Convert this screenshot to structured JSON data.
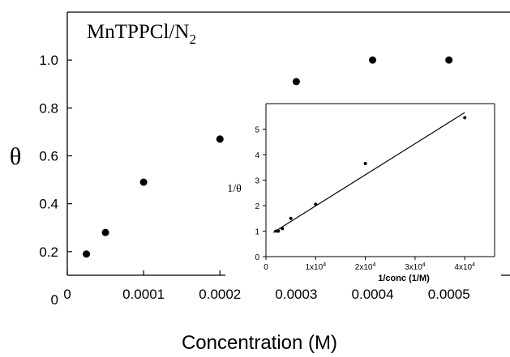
{
  "chart_data": [
    {
      "type": "scatter",
      "title": "MnTPPCl/N",
      "title_subscript": "2",
      "xlabel": "Concentration (M)",
      "ylabel": "θ",
      "xlim": [
        0,
        0.00058
      ],
      "ylim": [
        0,
        1.2
      ],
      "x_ticks": [
        0,
        0.0001,
        0.0002,
        0.0003,
        0.0004,
        0.0005
      ],
      "x_tick_labels": [
        "0",
        "0.0001",
        "0.0002",
        "0.0003",
        "0.0004",
        "0.0005"
      ],
      "y_ticks": [
        0,
        0.2,
        0.4,
        0.6,
        0.8,
        1.0
      ],
      "y_tick_labels": [
        "0",
        "0.2",
        "0.4",
        "0.6",
        "0.8",
        "1.0"
      ],
      "grid": false,
      "x": [
        2.5e-05,
        5e-05,
        0.0001,
        0.0002,
        0.0003,
        0.0004,
        0.0005
      ],
      "y": [
        0.19,
        0.28,
        0.49,
        0.67,
        0.91,
        1.0,
        1.0
      ],
      "marker_color": "#000000"
    },
    {
      "type": "scatter",
      "role": "inset",
      "xlabel": "1/conc (1/M)",
      "ylabel": "1/θ",
      "xlim": [
        0,
        46000
      ],
      "ylim": [
        0,
        6
      ],
      "x_ticks": [
        0,
        10000,
        20000,
        30000,
        40000
      ],
      "x_tick_labels": [
        {
          "base": "0",
          "exp": ""
        },
        {
          "base": "1x10",
          "exp": "4"
        },
        {
          "base": "2x10",
          "exp": "4"
        },
        {
          "base": "3x10",
          "exp": "4"
        },
        {
          "base": "4x10",
          "exp": "4"
        }
      ],
      "y_ticks": [
        0,
        1,
        2,
        3,
        4,
        5
      ],
      "y_tick_labels": [
        "0",
        "1",
        "2",
        "3",
        "4",
        "5"
      ],
      "grid": false,
      "x": [
        2000,
        2500,
        3300,
        5000,
        10000,
        20000,
        40000
      ],
      "y": [
        1.0,
        1.0,
        1.1,
        1.5,
        2.05,
        3.65,
        5.45
      ],
      "fit_line": {
        "x": [
          1500,
          40000
        ],
        "y": [
          0.95,
          5.65
        ]
      },
      "marker_color": "#000000"
    }
  ]
}
